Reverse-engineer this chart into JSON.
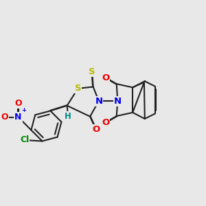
{
  "bg_color": "#e8e8e8",
  "bond_color": "#222222",
  "bond_lw": 1.5,
  "doff": 0.018,
  "colors": {
    "S": "#b8b800",
    "N": "#0000ee",
    "O": "#ee0000",
    "Cl": "#008800",
    "H": "#008888",
    "C": "#222222"
  },
  "fs": 9.0
}
